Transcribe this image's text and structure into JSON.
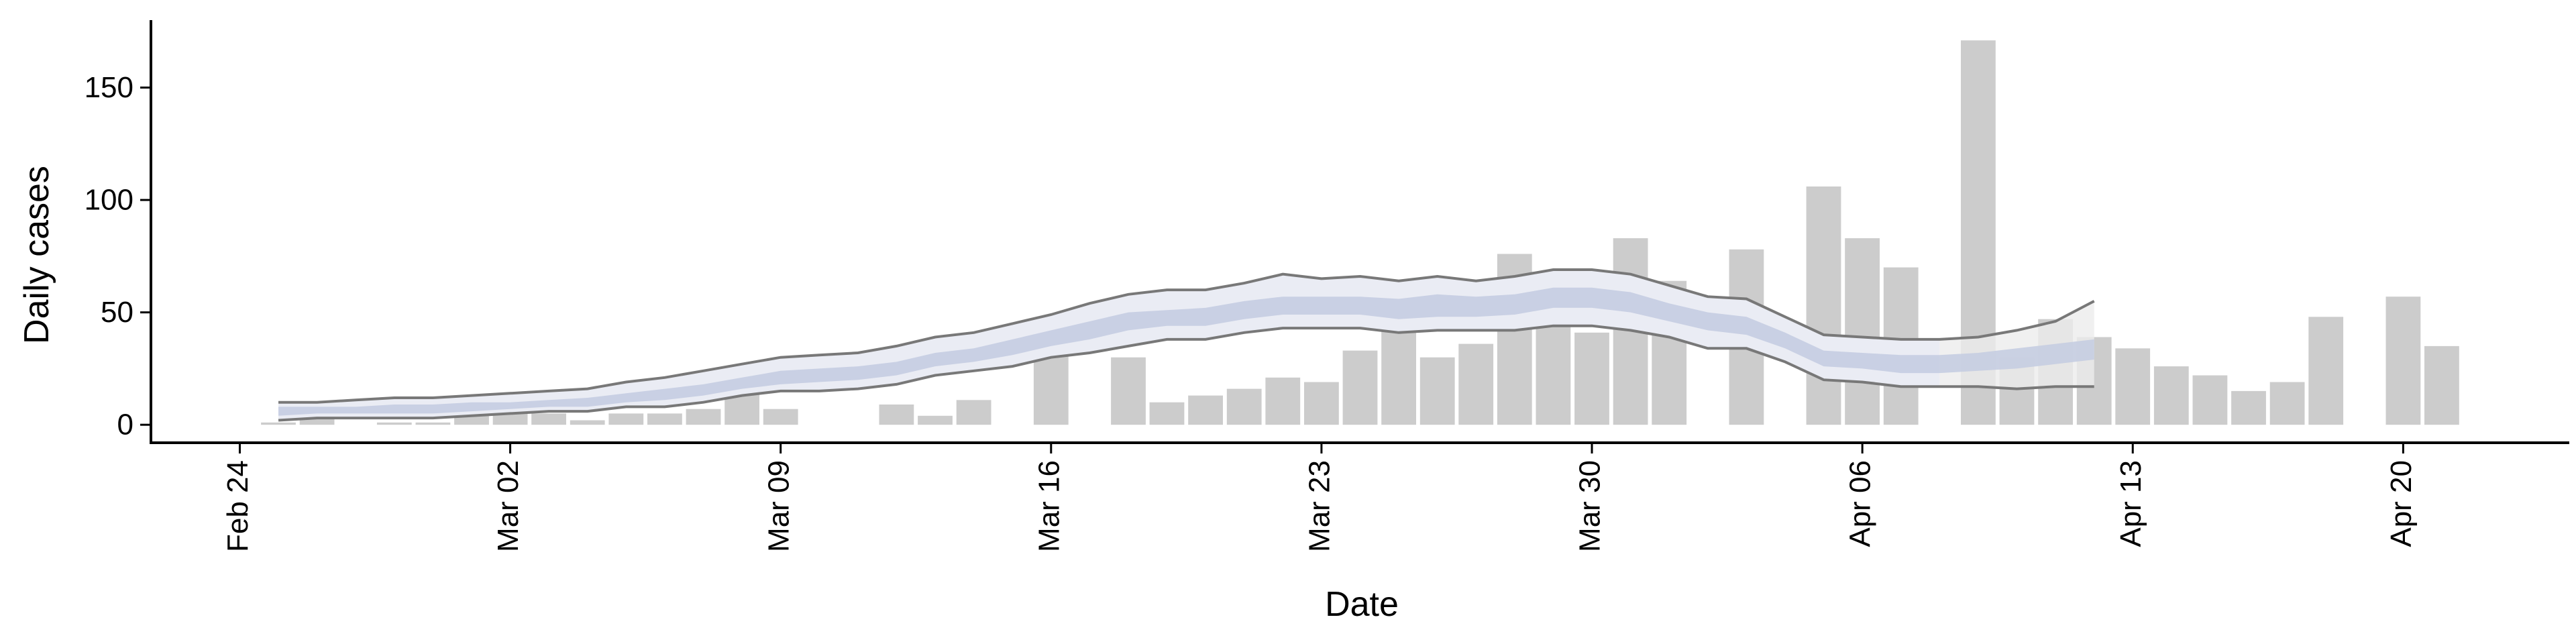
{
  "colors": {
    "bar": "#cccccc",
    "band_outer": "#eaecf4",
    "band_inner": "#c3cbe0",
    "bound_line": "#787878",
    "forecast_band": "#ececec",
    "axis": "#000000"
  },
  "chart_data": {
    "type": "bar",
    "xlabel": "Date",
    "ylabel": "Daily cases",
    "date_start": "2020-02-24",
    "x_ticks": [
      "Feb 24",
      "Mar 02",
      "Mar 09",
      "Mar 16",
      "Mar 23",
      "Mar 30",
      "Apr 06",
      "Apr 13",
      "Apr 20"
    ],
    "x_tick_days": [
      0,
      7,
      14,
      21,
      28,
      35,
      42,
      49,
      56
    ],
    "y_ticks": [
      0,
      50,
      100,
      150
    ],
    "xlim": [
      -2.3,
      60.3
    ],
    "ylim": [
      -8,
      180
    ],
    "daily_cases": [
      {
        "day": 1,
        "value": 1
      },
      {
        "day": 2,
        "value": 3
      },
      {
        "day": 4,
        "value": 1
      },
      {
        "day": 5,
        "value": 1
      },
      {
        "day": 6,
        "value": 5
      },
      {
        "day": 7,
        "value": 6
      },
      {
        "day": 8,
        "value": 5
      },
      {
        "day": 9,
        "value": 2
      },
      {
        "day": 10,
        "value": 5
      },
      {
        "day": 11,
        "value": 5
      },
      {
        "day": 12,
        "value": 7
      },
      {
        "day": 13,
        "value": 16
      },
      {
        "day": 14,
        "value": 7
      },
      {
        "day": 17,
        "value": 9
      },
      {
        "day": 18,
        "value": 4
      },
      {
        "day": 19,
        "value": 11
      },
      {
        "day": 21,
        "value": 39
      },
      {
        "day": 23,
        "value": 30
      },
      {
        "day": 24,
        "value": 10
      },
      {
        "day": 25,
        "value": 13
      },
      {
        "day": 26,
        "value": 16
      },
      {
        "day": 27,
        "value": 21
      },
      {
        "day": 28,
        "value": 19
      },
      {
        "day": 29,
        "value": 33
      },
      {
        "day": 30,
        "value": 50
      },
      {
        "day": 31,
        "value": 30
      },
      {
        "day": 32,
        "value": 36
      },
      {
        "day": 33,
        "value": 76
      },
      {
        "day": 34,
        "value": 48
      },
      {
        "day": 35,
        "value": 41
      },
      {
        "day": 36,
        "value": 83
      },
      {
        "day": 37,
        "value": 64
      },
      {
        "day": 39,
        "value": 78
      },
      {
        "day": 41,
        "value": 106
      },
      {
        "day": 42,
        "value": 83
      },
      {
        "day": 43,
        "value": 70
      },
      {
        "day": 45,
        "value": 171
      },
      {
        "day": 46,
        "value": 30
      },
      {
        "day": 47,
        "value": 47
      },
      {
        "day": 48,
        "value": 39
      },
      {
        "day": 49,
        "value": 34
      },
      {
        "day": 50,
        "value": 26
      },
      {
        "day": 51,
        "value": 22
      },
      {
        "day": 52,
        "value": 15
      },
      {
        "day": 53,
        "value": 19
      },
      {
        "day": 54,
        "value": 48
      },
      {
        "day": 56,
        "value": 57
      },
      {
        "day": 57,
        "value": 35
      }
    ],
    "estimate": {
      "day": [
        1,
        2,
        3,
        4,
        5,
        6,
        7,
        8,
        9,
        10,
        11,
        12,
        13,
        14,
        15,
        16,
        17,
        18,
        19,
        20,
        21,
        22,
        23,
        24,
        25,
        26,
        27,
        28,
        29,
        30,
        31,
        32,
        33,
        34,
        35,
        36,
        37,
        38,
        39,
        40,
        41,
        42,
        43,
        44,
        45,
        46,
        47,
        48
      ],
      "upper": [
        10,
        10,
        11,
        12,
        12,
        13,
        14,
        15,
        16,
        19,
        21,
        24,
        27,
        30,
        31,
        32,
        35,
        39,
        41,
        45,
        49,
        54,
        58,
        60,
        60,
        63,
        67,
        65,
        66,
        64,
        66,
        64,
        66,
        69,
        69,
        67,
        62,
        57,
        56,
        48,
        40,
        39,
        38,
        38,
        39,
        42,
        46,
        55
      ],
      "lower": [
        2,
        3,
        3,
        3,
        3,
        4,
        5,
        6,
        6,
        8,
        8,
        10,
        13,
        15,
        15,
        16,
        18,
        22,
        24,
        26,
        30,
        32,
        35,
        38,
        38,
        41,
        43,
        43,
        43,
        41,
        42,
        42,
        42,
        44,
        44,
        42,
        39,
        34,
        34,
        28,
        20,
        19,
        17,
        17,
        17,
        16,
        17,
        17
      ],
      "mid_upper": [
        8,
        8,
        8,
        9,
        9,
        10,
        10,
        11,
        12,
        14,
        16,
        18,
        21,
        24,
        25,
        26,
        28,
        32,
        34,
        38,
        42,
        46,
        50,
        51,
        52,
        55,
        57,
        57,
        57,
        56,
        58,
        57,
        58,
        61,
        61,
        59,
        54,
        50,
        48,
        41,
        33,
        32,
        31,
        31,
        32,
        34,
        36,
        38
      ],
      "mid_lower": [
        4,
        5,
        5,
        5,
        5,
        6,
        7,
        8,
        8,
        10,
        11,
        13,
        16,
        18,
        19,
        20,
        22,
        26,
        28,
        31,
        35,
        38,
        42,
        44,
        44,
        47,
        49,
        49,
        49,
        47,
        48,
        48,
        49,
        52,
        52,
        50,
        46,
        42,
        40,
        34,
        26,
        25,
        23,
        23,
        24,
        25,
        27,
        29
      ]
    }
  }
}
